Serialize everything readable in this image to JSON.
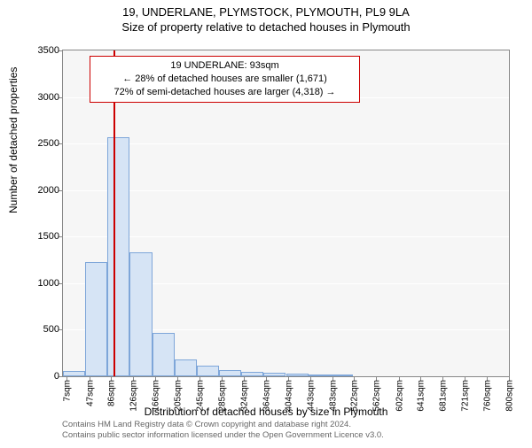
{
  "title_line1": "19, UNDERLANE, PLYMSTOCK, PLYMOUTH, PL9 9LA",
  "title_line2": "Size of property relative to detached houses in Plymouth",
  "ylabel": "Number of detached properties",
  "xlabel": "Distribution of detached houses by size in Plymouth",
  "footer_line1": "Contains HM Land Registry data © Crown copyright and database right 2024.",
  "footer_line2": "Contains public sector information licensed under the Open Government Licence v3.0.",
  "chart": {
    "type": "histogram",
    "background_color": "#f6f6f6",
    "grid_color": "#ffffff",
    "border_color": "#888888",
    "bar_fill": "#d6e4f5",
    "bar_stroke": "#7ea6d9",
    "marker_color": "#cc0000",
    "ylim": [
      0,
      3500
    ],
    "ytick_step": 500,
    "yticks": [
      0,
      500,
      1000,
      1500,
      2000,
      2500,
      3000,
      3500
    ],
    "xticks": [
      "7sqm",
      "47sqm",
      "86sqm",
      "126sqm",
      "166sqm",
      "205sqm",
      "245sqm",
      "285sqm",
      "324sqm",
      "364sqm",
      "404sqm",
      "443sqm",
      "483sqm",
      "522sqm",
      "562sqm",
      "602sqm",
      "641sqm",
      "681sqm",
      "721sqm",
      "760sqm",
      "800sqm"
    ],
    "x_range": [
      0,
      800
    ],
    "bin_width": 40,
    "bars": [
      {
        "x0": 0,
        "count": 60
      },
      {
        "x0": 40,
        "count": 1230
      },
      {
        "x0": 80,
        "count": 2570
      },
      {
        "x0": 120,
        "count": 1330
      },
      {
        "x0": 160,
        "count": 470
      },
      {
        "x0": 200,
        "count": 180
      },
      {
        "x0": 240,
        "count": 110
      },
      {
        "x0": 280,
        "count": 70
      },
      {
        "x0": 320,
        "count": 50
      },
      {
        "x0": 360,
        "count": 40
      },
      {
        "x0": 400,
        "count": 30
      },
      {
        "x0": 440,
        "count": 20
      },
      {
        "x0": 480,
        "count": 10
      }
    ],
    "marker_x": 93,
    "info_box": {
      "line1": "19 UNDERLANE: 93sqm",
      "line2": "← 28% of detached houses are smaller (1,671)",
      "line3": "72% of semi-detached houses are larger (4,318) →"
    },
    "label_fontsize": 12,
    "tick_fontsize": 11,
    "xtick_fontsize": 10,
    "title_fontsize": 13,
    "footer_fontsize": 9.5,
    "footer_color": "#666666"
  }
}
